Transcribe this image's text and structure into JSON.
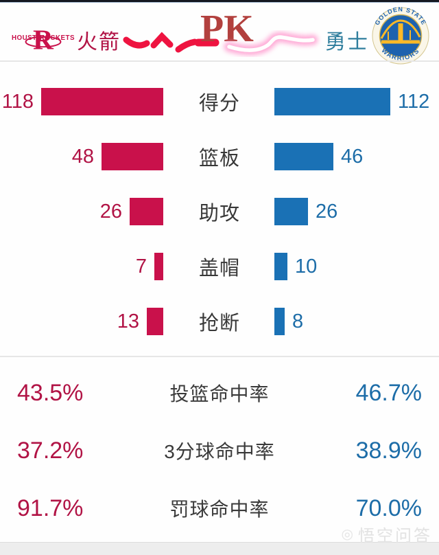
{
  "header": {
    "rockets_logo": {
      "word_left": "HOUSTON",
      "letter": "R",
      "word_right": "ROCKETS"
    },
    "rockets_name": "火箭",
    "pk_label": "PK",
    "warriors_name": "勇士",
    "warriors_logo": {
      "arc_top": "GOLDEN STATE",
      "arc_bottom": "WARRIORS"
    }
  },
  "chart_data": {
    "type": "bar",
    "layout": "mirrored horizontal team comparison, labels centered, red bars grow leftward, blue bars grow rightward",
    "title": "火箭 PK 勇士",
    "categories": [
      "得分",
      "篮板",
      "助攻",
      "盖帽",
      "抢断"
    ],
    "series": [
      {
        "name": "火箭",
        "color": "#c9114b",
        "values": [
          118,
          48,
          26,
          7,
          13
        ]
      },
      {
        "name": "勇士",
        "color": "#1a71b5",
        "values": [
          112,
          46,
          26,
          10,
          8
        ]
      }
    ],
    "percentages": {
      "categories": [
        "投篮命中率",
        "3分球命中率",
        "罚球命中率"
      ],
      "series": [
        {
          "name": "火箭",
          "values": [
            "43.5%",
            "37.2%",
            "91.7%"
          ]
        },
        {
          "name": "勇士",
          "values": [
            "46.7%",
            "38.9%",
            "70.0%"
          ]
        }
      ]
    }
  },
  "colors": {
    "rockets_red": "#c9114b",
    "rockets_text": "#b11345",
    "warriors_blue": "#1a71b5",
    "warriors_text": "#1d6da8",
    "warriors_name_teal": "#2f7e9d"
  },
  "watermark": "悟空问答"
}
